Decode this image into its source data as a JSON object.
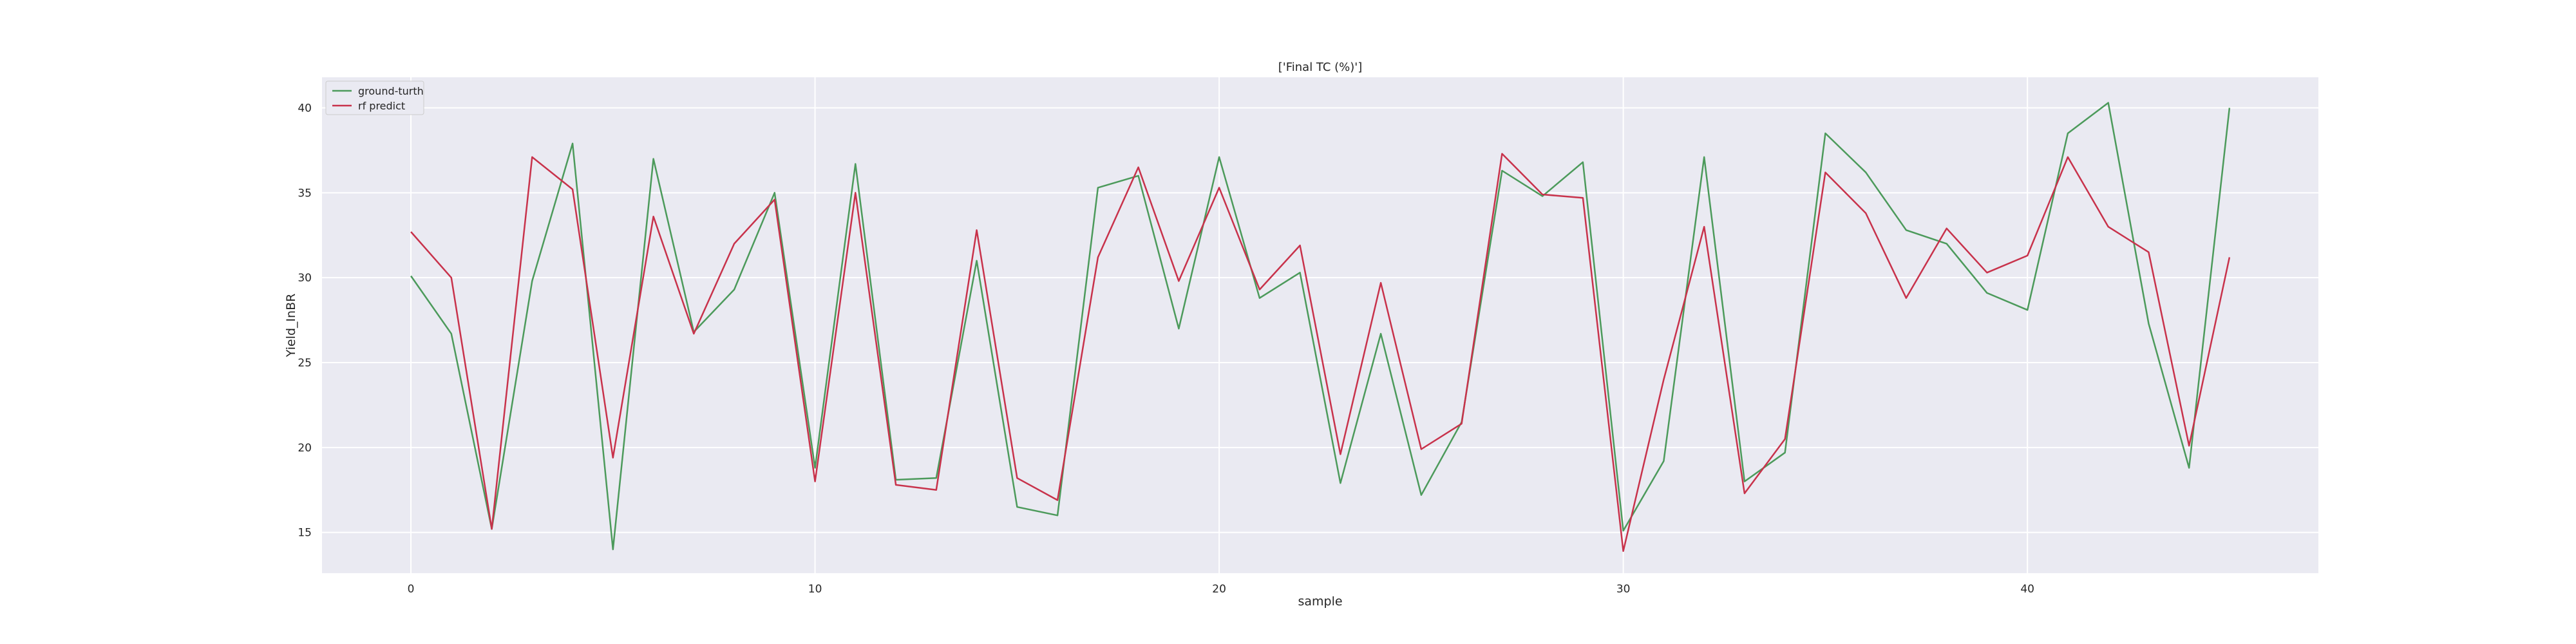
{
  "chart_data": {
    "type": "line",
    "title": "['Final TC (%)']",
    "xlabel": "sample",
    "ylabel": "Yield_InBR",
    "xlim": [
      -2.2,
      47.2
    ],
    "ylim": [
      12.6,
      41.8
    ],
    "xticks": [
      0,
      10,
      20,
      30,
      40
    ],
    "yticks": [
      15,
      20,
      25,
      30,
      35,
      40
    ],
    "grid": true,
    "legend": "top-left",
    "x": [
      0,
      1,
      2,
      3,
      4,
      5,
      6,
      7,
      8,
      9,
      10,
      11,
      12,
      13,
      14,
      15,
      16,
      17,
      18,
      19,
      20,
      21,
      22,
      23,
      24,
      25,
      26,
      27,
      28,
      29,
      30,
      31,
      32,
      33,
      34,
      35,
      36,
      37,
      38,
      39,
      40,
      41,
      42,
      43,
      44,
      45
    ],
    "series": [
      {
        "name": "ground-turth",
        "color": "#4c9a5b",
        "values": [
          30.1,
          26.7,
          15.2,
          29.8,
          37.9,
          14.0,
          37.0,
          26.8,
          29.3,
          35.0,
          18.8,
          36.7,
          18.1,
          18.2,
          31.0,
          16.5,
          16.0,
          35.3,
          36.0,
          27.0,
          37.1,
          28.8,
          30.3,
          17.9,
          26.7,
          17.2,
          21.5,
          36.3,
          34.8,
          36.8,
          15.1,
          19.2,
          37.1,
          18.0,
          19.7,
          38.5,
          36.2,
          32.8,
          32.0,
          29.1,
          28.1,
          38.5,
          40.3,
          27.3,
          18.8,
          40.0
        ]
      },
      {
        "name": "rf predict",
        "color": "#c8324b",
        "values": [
          32.7,
          30.0,
          15.2,
          37.1,
          35.2,
          19.4,
          33.6,
          26.7,
          32.0,
          34.6,
          18.0,
          35.0,
          17.8,
          17.5,
          32.8,
          18.2,
          16.9,
          31.2,
          36.5,
          29.8,
          35.3,
          29.3,
          31.9,
          19.6,
          29.7,
          19.9,
          21.4,
          37.3,
          34.9,
          34.7,
          13.9,
          24.0,
          33.0,
          17.3,
          20.5,
          36.2,
          33.8,
          28.8,
          32.9,
          30.3,
          31.3,
          37.1,
          33.0,
          31.5,
          20.1,
          31.2
        ]
      }
    ]
  }
}
